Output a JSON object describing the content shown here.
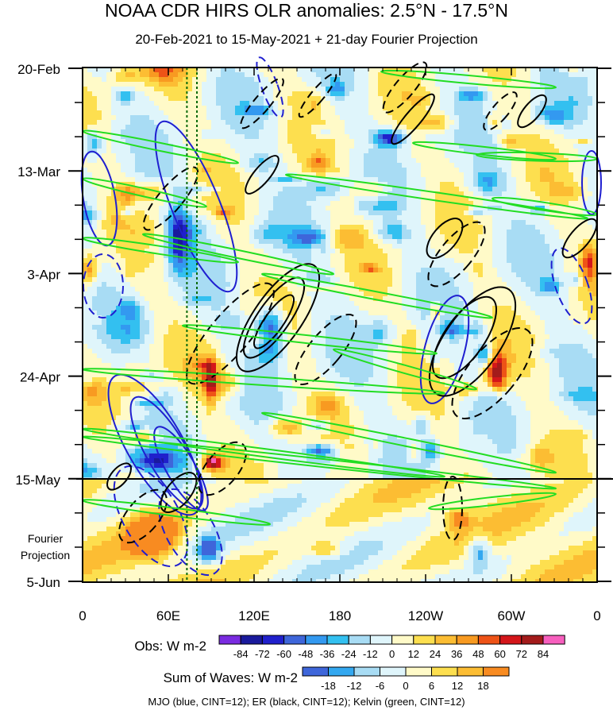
{
  "title": "NOAA CDR HIRS OLR anomalies: 2.5°N - 17.5°N",
  "subtitle": "20-Feb-2021 to 15-May-2021 + 21-day Fourier Projection",
  "footer": "MJO (blue, CINT=12); ER (black, CINT=12); Kelvin (green, CINT=12)",
  "chart_data": {
    "type": "heatmap",
    "x_axis": {
      "label": "",
      "ticks": [
        "0",
        "60E",
        "120E",
        "180",
        "120W",
        "60W",
        "0"
      ],
      "tick_values": [
        0,
        60,
        120,
        180,
        240,
        300,
        360
      ],
      "range": [
        0,
        360
      ]
    },
    "y_axis": {
      "label": "",
      "ticks": [
        "20-Feb",
        "13-Mar",
        "3-Apr",
        "24-Apr",
        "15-May",
        "5-Jun"
      ],
      "range": [
        "20-Feb-2021",
        "5-Jun-2021"
      ],
      "direction": "time increases downward"
    },
    "projection_divider": "15-May",
    "projection_label": [
      "Fourier",
      "Projection"
    ],
    "reference_lines_lon": [
      73,
      80
    ],
    "obs_colorbar": {
      "label": "Obs: W m-2",
      "levels": [
        "-84",
        "-72",
        "-60",
        "-48",
        "-36",
        "-24",
        "-12",
        "0",
        "12",
        "24",
        "36",
        "48",
        "60",
        "72",
        "84"
      ],
      "colors": [
        "#7a2be0",
        "#1a1a9c",
        "#2020cc",
        "#3e66da",
        "#3399f0",
        "#33c0f0",
        "#a8dcf4",
        "#dff5fb",
        "#fffac8",
        "#fddf4f",
        "#fcbd33",
        "#f89a21",
        "#ee5317",
        "#d4161a",
        "#a31b1b",
        "#f75fbe"
      ]
    },
    "waves_colorbar": {
      "label": "Sum of Waves: W m-2",
      "levels": [
        "-18",
        "-12",
        "-6",
        "0",
        "6",
        "12",
        "18"
      ],
      "colors": [
        "#3e66da",
        "#33a8f0",
        "#a8dcf4",
        "#dff5fb",
        "#fffac8",
        "#fddf4f",
        "#fcbd33",
        "#f88b21"
      ]
    },
    "contour_series": [
      {
        "name": "MJO",
        "color": "#1f1fd0",
        "cint": 12
      },
      {
        "name": "ER",
        "color": "#000000",
        "cint": 12
      },
      {
        "name": "Kelvin",
        "color": "#22dd22",
        "cint": 12
      }
    ],
    "grid": false
  }
}
